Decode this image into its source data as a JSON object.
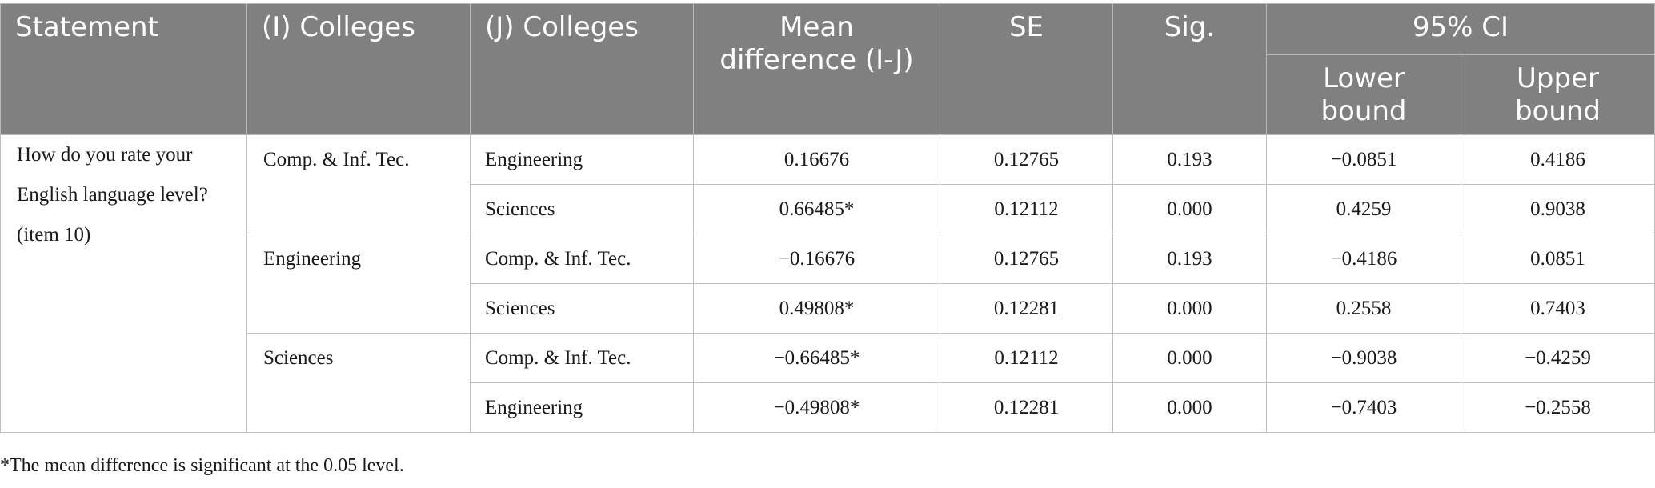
{
  "table": {
    "headers": {
      "statement": "Statement",
      "i_colleges": "(I) Colleges",
      "j_colleges": "(J) Colleges",
      "mean_difference_line1": "Mean",
      "mean_difference_line2": "difference (I-J)",
      "se": "SE",
      "sig": "Sig.",
      "ci": "95% CI",
      "lower_line1": "Lower",
      "lower_line2": "bound",
      "upper_line1": "Upper",
      "upper_line2": "bound"
    },
    "statement_lines": [
      "How do you rate your",
      "English language level?",
      "(item 10)"
    ],
    "groups": [
      {
        "i_college": "Comp. & Inf. Tec.",
        "rows": [
          {
            "j_college": "Engineering",
            "mean_diff": "0.16676",
            "se": "0.12765",
            "sig": "0.193",
            "lower": "−0.0851",
            "upper": "0.4186"
          },
          {
            "j_college": "Sciences",
            "mean_diff": "0.66485*",
            "se": "0.12112",
            "sig": "0.000",
            "lower": "0.4259",
            "upper": "0.9038"
          }
        ]
      },
      {
        "i_college": "Engineering",
        "rows": [
          {
            "j_college": "Comp. & Inf. Tec.",
            "mean_diff": "−0.16676",
            "se": "0.12765",
            "sig": "0.193",
            "lower": "−0.4186",
            "upper": "0.0851"
          },
          {
            "j_college": "Sciences",
            "mean_diff": "0.49808*",
            "se": "0.12281",
            "sig": "0.000",
            "lower": "0.2558",
            "upper": "0.7403"
          }
        ]
      },
      {
        "i_college": "Sciences",
        "rows": [
          {
            "j_college": "Comp. & Inf. Tec.",
            "mean_diff": "−0.66485*",
            "se": "0.12112",
            "sig": "0.000",
            "lower": "−0.9038",
            "upper": "−0.4259"
          },
          {
            "j_college": "Engineering",
            "mean_diff": "−0.49808*",
            "se": "0.12281",
            "sig": "0.000",
            "lower": "−0.7403",
            "upper": "−0.2558"
          }
        ]
      }
    ]
  },
  "footnote": "*The mean difference is significant at the 0.05 level.",
  "colors": {
    "header_background": "#808080",
    "header_text": "#ffffff",
    "grid_line": "#bfbfbf"
  }
}
